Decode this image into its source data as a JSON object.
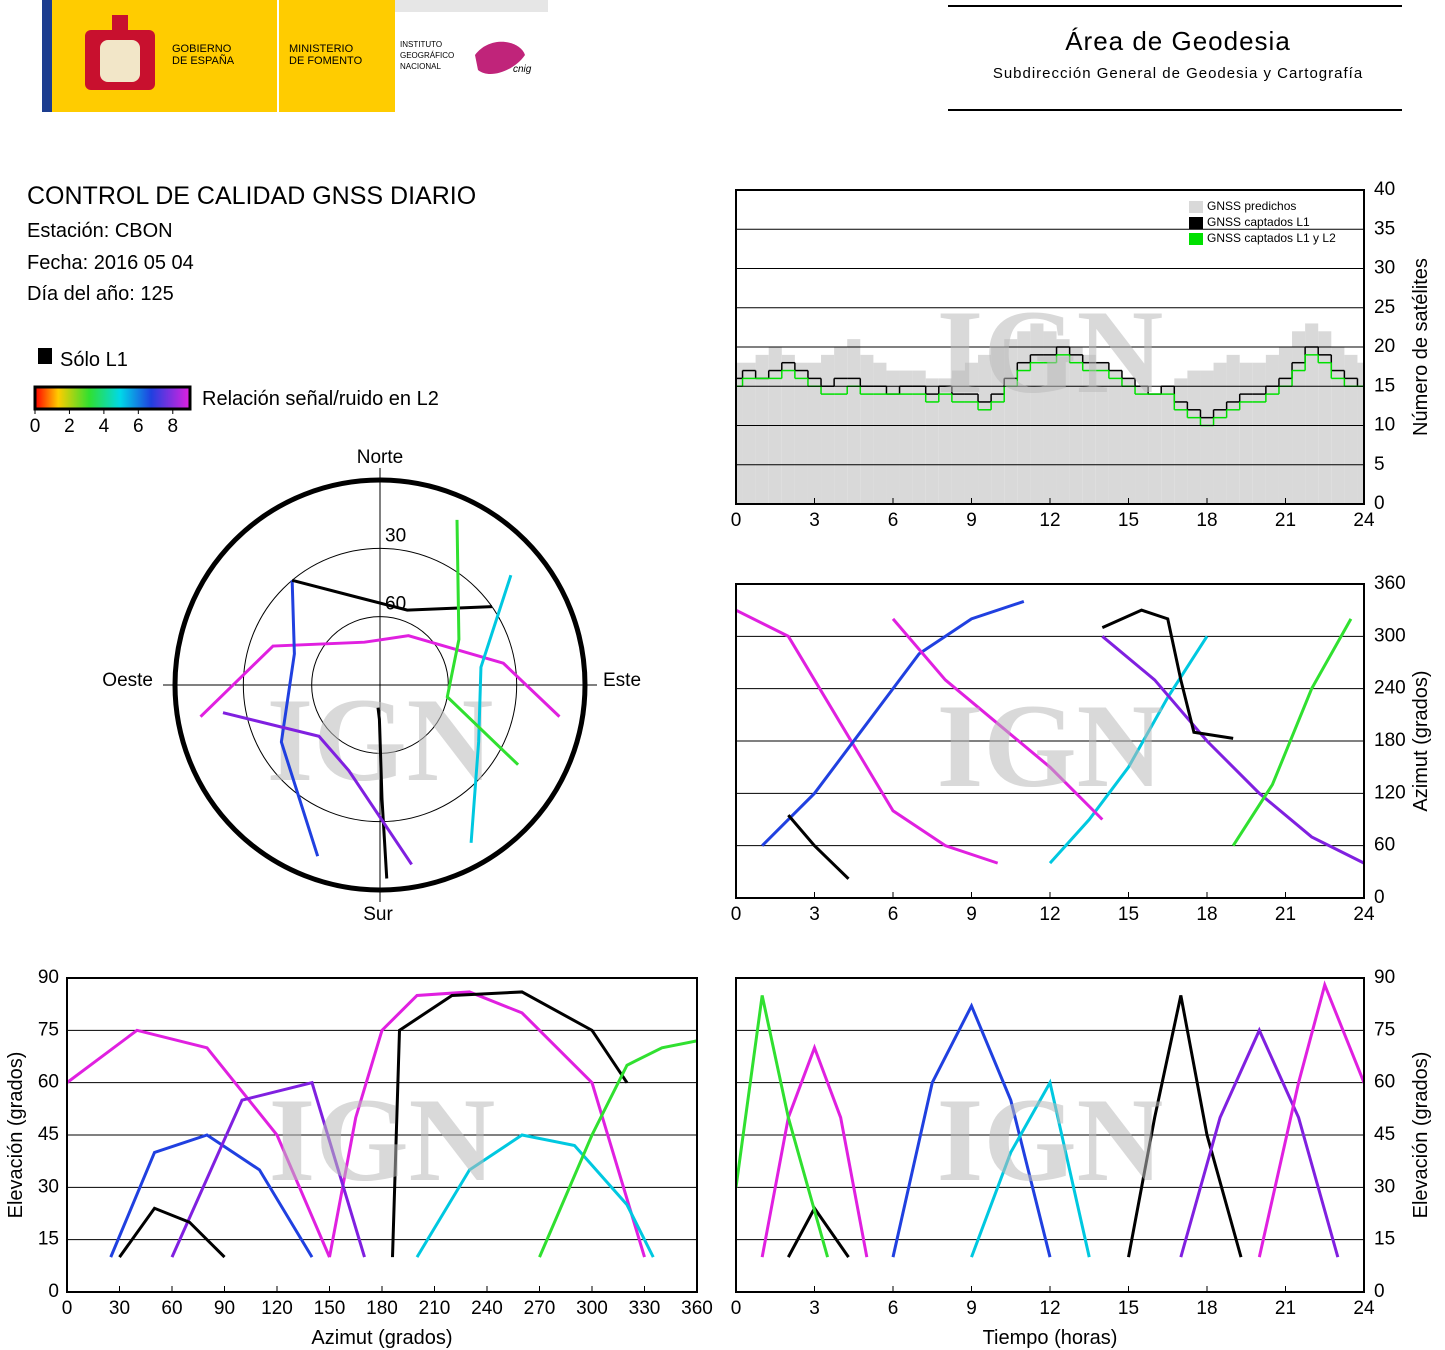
{
  "header": {
    "gobierno": [
      "GOBIERNO",
      "DE ESPAÑA"
    ],
    "ministerio": [
      "MINISTERIO",
      "DE FOMENTO"
    ],
    "instituto": [
      "INSTITUTO",
      "GEOGRÁFICO",
      "NACIONAL"
    ],
    "cnig": "cnig",
    "area": "Área de Geodesia",
    "subdireccion": "Subdirección General de Geodesia y Cartografía"
  },
  "report": {
    "title": "CONTROL DE CALIDAD GNSS DIARIO",
    "station": "Estación: CBON",
    "date": "Fecha: 2016 05 04",
    "doy": "Día del año: 125",
    "solo_l1": "Sólo L1",
    "colorbar": {
      "label": "Relación señal/ruido en L2",
      "lim": [
        0,
        9
      ],
      "ticks": [
        0,
        2,
        4,
        6,
        8
      ]
    }
  },
  "watermark": "IGN",
  "chart_data": [
    {
      "type": "polar",
      "north": "Norte",
      "south": "Sur",
      "east": "Este",
      "west": "Oeste",
      "rlim": [
        0,
        90
      ],
      "rticks": [
        30,
        60
      ],
      "series": [
        {
          "color": "#e020e0",
          "x": [
            260,
            290,
            340,
            30,
            80,
            100
          ],
          "values": [
            10,
            40,
            70,
            65,
            35,
            10
          ]
        },
        {
          "color": "#2040e0",
          "x": [
            200,
            240,
            290,
            320
          ],
          "values": [
            10,
            40,
            50,
            30
          ]
        },
        {
          "color": "#00c8e0",
          "x": [
            150,
            120,
            80,
            50
          ],
          "values": [
            10,
            40,
            45,
            15
          ]
        },
        {
          "color": "#000000",
          "x": [
            178,
            179,
            181,
            185
          ],
          "values": [
            5,
            40,
            75,
            80
          ]
        },
        {
          "color": "#000000",
          "x": [
            320,
            345,
            20,
            55
          ],
          "values": [
            30,
            50,
            55,
            30
          ]
        },
        {
          "color": "#30e030",
          "x": [
            25,
            60,
            100,
            120
          ],
          "values": [
            10,
            50,
            60,
            20
          ]
        },
        {
          "color": "#8020e0",
          "x": [
            170,
            200,
            230,
            260
          ],
          "values": [
            10,
            50,
            55,
            20
          ]
        }
      ]
    },
    {
      "type": "step",
      "ylabel": "Número de satélites",
      "xlim": [
        0,
        24
      ],
      "xticks": [
        0,
        3,
        6,
        9,
        12,
        15,
        18,
        21,
        24
      ],
      "ylim": [
        0,
        40
      ],
      "yticks": [
        0,
        5,
        10,
        15,
        20,
        25,
        30,
        35,
        40
      ],
      "grid": true,
      "x": [
        0,
        0.5,
        1,
        1.5,
        2,
        2.5,
        3,
        3.5,
        4,
        4.5,
        5,
        5.5,
        6,
        6.5,
        7,
        7.5,
        8,
        8.5,
        9,
        9.5,
        10,
        10.5,
        11,
        11.5,
        12,
        12.5,
        13,
        13.5,
        14,
        14.5,
        15,
        15.5,
        16,
        16.5,
        17,
        17.5,
        18,
        18.5,
        19,
        19.5,
        20,
        20.5,
        21,
        21.5,
        22,
        22.5,
        23,
        23.5,
        24
      ],
      "series": [
        {
          "name": "GNSS predichos",
          "color": "#d9d9d9",
          "fill": true,
          "values": [
            18,
            18,
            19,
            20,
            19,
            18,
            18,
            19,
            20,
            21,
            19,
            18,
            17,
            17,
            17,
            16,
            16,
            17,
            18,
            19,
            20,
            21,
            22,
            23,
            22,
            21,
            20,
            19,
            18,
            17,
            16,
            15,
            14,
            15,
            16,
            17,
            17,
            18,
            19,
            18,
            18,
            19,
            20,
            22,
            23,
            22,
            20,
            19,
            18
          ]
        },
        {
          "name": "GNSS captados L1",
          "color": "#000000",
          "fill": false,
          "values": [
            16,
            17,
            16,
            17,
            18,
            17,
            16,
            15,
            16,
            16,
            15,
            15,
            14,
            15,
            15,
            14,
            15,
            14,
            14,
            13,
            14,
            16,
            18,
            19,
            19,
            20,
            19,
            18,
            18,
            17,
            16,
            15,
            14,
            15,
            13,
            12,
            11,
            12,
            13,
            14,
            14,
            15,
            16,
            18,
            20,
            19,
            17,
            16,
            15
          ]
        },
        {
          "name": "GNSS captados L1 y L2",
          "color": "#00e000",
          "fill": false,
          "values": [
            15,
            16,
            16,
            16,
            17,
            16,
            15,
            14,
            14,
            15,
            14,
            14,
            14,
            14,
            14,
            13,
            14,
            13,
            13,
            12,
            13,
            15,
            17,
            18,
            18,
            19,
            18,
            17,
            17,
            16,
            15,
            14,
            14,
            14,
            12,
            11,
            10,
            11,
            12,
            13,
            13,
            14,
            15,
            17,
            19,
            18,
            16,
            15,
            15
          ]
        }
      ]
    },
    {
      "type": "line",
      "ylabel": "Azimut (grados)",
      "xlim": [
        0,
        24
      ],
      "xticks": [
        0,
        3,
        6,
        9,
        12,
        15,
        18,
        21,
        24
      ],
      "ylim": [
        0,
        360
      ],
      "yticks": [
        0,
        60,
        120,
        180,
        240,
        300,
        360
      ],
      "grid": true,
      "series": [
        {
          "color": "#e020e0",
          "x": [
            0,
            2,
            4,
            6,
            8,
            10
          ],
          "values": [
            330,
            300,
            200,
            100,
            60,
            40
          ]
        },
        {
          "color": "#2040e0",
          "x": [
            1,
            3,
            5,
            7,
            9,
            11
          ],
          "values": [
            60,
            120,
            200,
            280,
            320,
            340
          ]
        },
        {
          "color": "#00c8e0",
          "x": [
            12,
            13.5,
            15,
            16.5,
            18
          ],
          "values": [
            40,
            90,
            150,
            230,
            300
          ]
        },
        {
          "color": "#8020e0",
          "x": [
            14,
            16,
            18,
            20,
            22,
            24
          ],
          "values": [
            300,
            250,
            180,
            120,
            70,
            40
          ]
        },
        {
          "color": "#000000",
          "x": [
            14,
            15.5,
            16.5,
            17,
            17.5,
            19
          ],
          "values": [
            310,
            330,
            320,
            250,
            190,
            183
          ]
        },
        {
          "color": "#000000",
          "x": [
            2,
            3,
            4.3
          ],
          "values": [
            95,
            60,
            22
          ]
        },
        {
          "color": "#30e030",
          "x": [
            19,
            20.5,
            22,
            23.5
          ],
          "values": [
            60,
            130,
            240,
            320
          ]
        },
        {
          "color": "#e020e0",
          "x": [
            6,
            8,
            10,
            12,
            14
          ],
          "values": [
            320,
            250,
            200,
            150,
            90
          ]
        }
      ]
    },
    {
      "type": "line",
      "xlabel": "Azimut (grados)",
      "ylabel": "Elevación (grados)",
      "xlim": [
        0,
        360
      ],
      "xticks": [
        0,
        30,
        60,
        90,
        120,
        150,
        180,
        210,
        240,
        270,
        300,
        330,
        360
      ],
      "ylim": [
        0,
        90
      ],
      "yticks": [
        0,
        15,
        30,
        45,
        60,
        75,
        90
      ],
      "grid": true,
      "series": [
        {
          "color": "#e020e0",
          "x": [
            150,
            165,
            180,
            200,
            230,
            260,
            300,
            330
          ],
          "values": [
            10,
            50,
            75,
            85,
            86,
            80,
            60,
            10
          ]
        },
        {
          "color": "#e020e0",
          "x": [
            0,
            40,
            80,
            120,
            150
          ],
          "values": [
            60,
            75,
            70,
            45,
            10
          ]
        },
        {
          "color": "#2040e0",
          "x": [
            25,
            50,
            80,
            110,
            140
          ],
          "values": [
            10,
            40,
            45,
            35,
            10
          ]
        },
        {
          "color": "#00c8e0",
          "x": [
            200,
            230,
            260,
            290,
            320,
            335
          ],
          "values": [
            10,
            35,
            45,
            42,
            25,
            10
          ]
        },
        {
          "color": "#8020e0",
          "x": [
            60,
            100,
            140,
            170
          ],
          "values": [
            10,
            55,
            60,
            10
          ]
        },
        {
          "color": "#000000",
          "x": [
            30,
            50,
            70,
            90
          ],
          "values": [
            10,
            24,
            20,
            10
          ]
        },
        {
          "color": "#000000",
          "x": [
            186,
            190,
            220,
            260,
            300,
            320
          ],
          "values": [
            10,
            75,
            85,
            86,
            75,
            60
          ]
        },
        {
          "color": "#30e030",
          "x": [
            270,
            300,
            320,
            340,
            360
          ],
          "values": [
            10,
            45,
            65,
            70,
            72
          ]
        }
      ]
    },
    {
      "type": "line",
      "xlabel": "Tiempo (horas)",
      "ylabel": "Elevación (grados)",
      "xlim": [
        0,
        24
      ],
      "xticks": [
        0,
        3,
        6,
        9,
        12,
        15,
        18,
        21,
        24
      ],
      "ylim": [
        0,
        90
      ],
      "yticks": [
        0,
        15,
        30,
        45,
        60,
        75,
        90
      ],
      "grid": true,
      "series": [
        {
          "color": "#e020e0",
          "x": [
            1,
            2,
            3,
            4,
            5
          ],
          "values": [
            10,
            50,
            70,
            50,
            10
          ]
        },
        {
          "color": "#000000",
          "x": [
            15,
            16,
            17,
            18,
            19.3
          ],
          "values": [
            10,
            50,
            85,
            45,
            10
          ]
        },
        {
          "color": "#000000",
          "x": [
            2,
            3,
            4.3
          ],
          "values": [
            10,
            24,
            10
          ]
        },
        {
          "color": "#2040e0",
          "x": [
            6,
            7.5,
            9,
            10.5,
            12
          ],
          "values": [
            10,
            60,
            82,
            55,
            10
          ]
        },
        {
          "color": "#00c8e0",
          "x": [
            9,
            10.5,
            12,
            13.5
          ],
          "values": [
            10,
            40,
            60,
            10
          ]
        },
        {
          "color": "#8020e0",
          "x": [
            17,
            18.5,
            20,
            21.5,
            23
          ],
          "values": [
            10,
            50,
            75,
            50,
            10
          ]
        },
        {
          "color": "#30e030",
          "x": [
            0,
            1,
            2,
            3.5
          ],
          "values": [
            30,
            85,
            50,
            10
          ]
        },
        {
          "color": "#e020e0",
          "x": [
            20,
            21.5,
            22.5,
            24
          ],
          "values": [
            10,
            60,
            88,
            60
          ]
        }
      ]
    }
  ]
}
